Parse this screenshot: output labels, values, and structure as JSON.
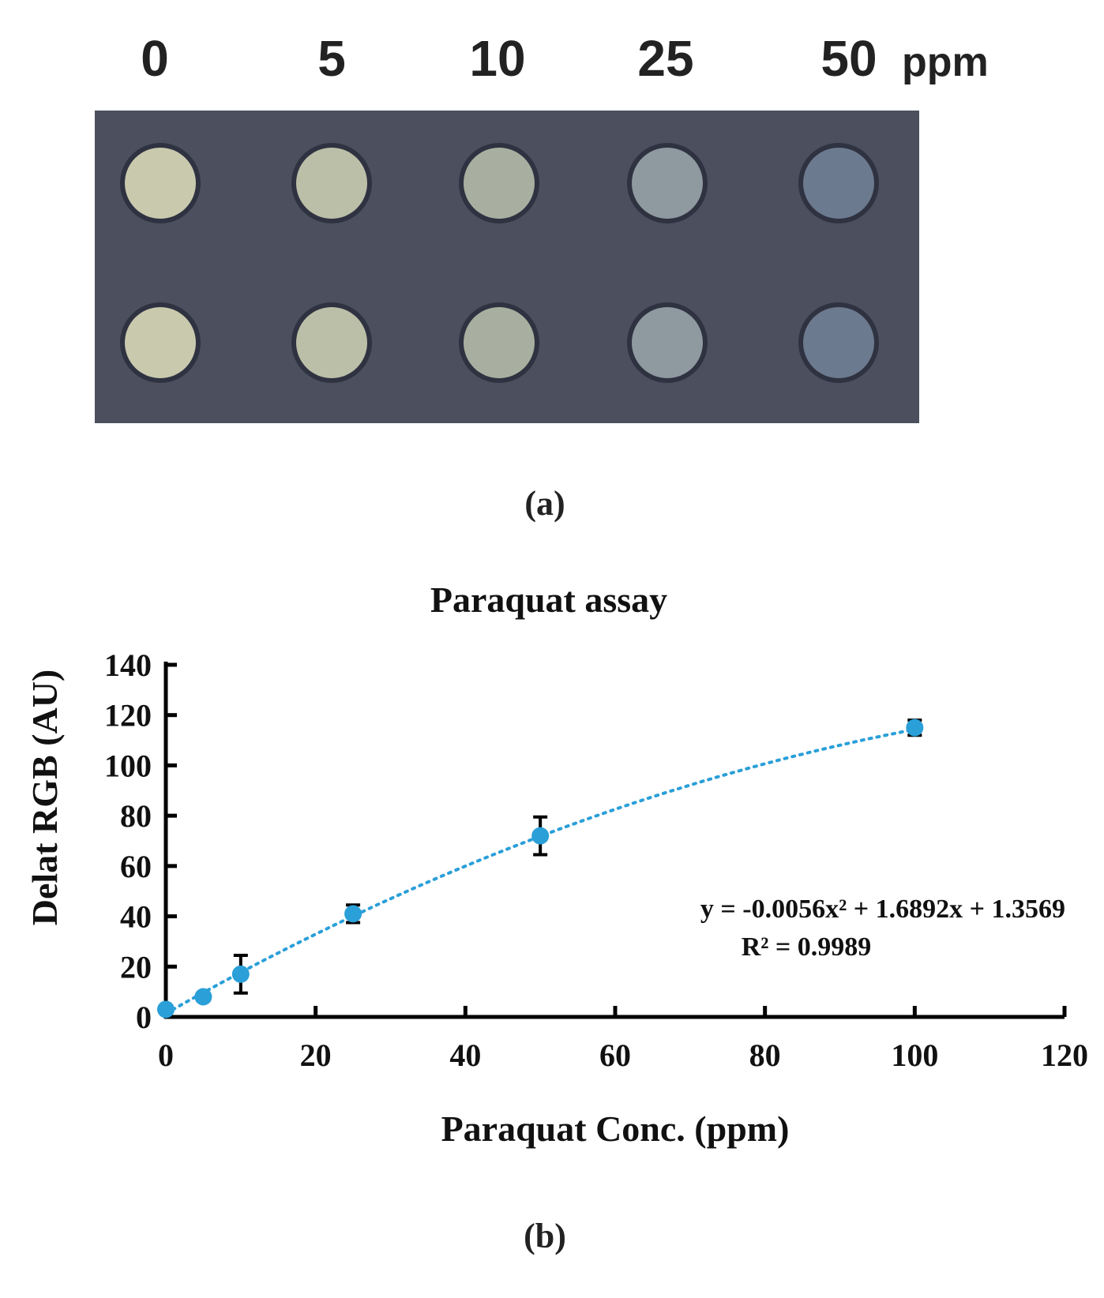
{
  "panel_a": {
    "concentration_labels": [
      "0",
      "5",
      "10",
      "25",
      "50"
    ],
    "unit": "ppm",
    "caption": "(a)",
    "plate_color": "#4c4f5d",
    "spot_colors": [
      "#c9c9ae",
      "#bcbfa8",
      "#a9afa0",
      "#8f99a0",
      "#6c7a8f"
    ],
    "rows": 2
  },
  "panel_b": {
    "caption": "(b)"
  },
  "chart_data": {
    "type": "scatter",
    "title": "Paraquat assay",
    "xlabel": "Paraquat Conc. (ppm)",
    "ylabel": "Delat RGB (AU)",
    "xlim": [
      0,
      120
    ],
    "ylim": [
      0,
      140
    ],
    "xticks": [
      0,
      20,
      40,
      60,
      80,
      100,
      120
    ],
    "yticks": [
      0,
      20,
      40,
      60,
      80,
      100,
      120,
      140
    ],
    "grid": false,
    "marker_color": "#2a9fd8",
    "series": [
      {
        "x": [
          0,
          5,
          10,
          25,
          50,
          100
        ],
        "y": [
          3,
          8,
          17,
          41,
          72,
          115
        ],
        "yerr": [
          1,
          1.5,
          7.5,
          3.5,
          7.5,
          3
        ]
      }
    ],
    "trendline": {
      "type": "polynomial",
      "coefficients": [
        -0.0056,
        1.6892,
        1.3569
      ],
      "x_range": [
        0,
        100
      ],
      "style": "dotted"
    },
    "annotations": [
      "y = -0.0056x² + 1.6892x + 1.3569",
      "R² = 0.9989"
    ]
  }
}
